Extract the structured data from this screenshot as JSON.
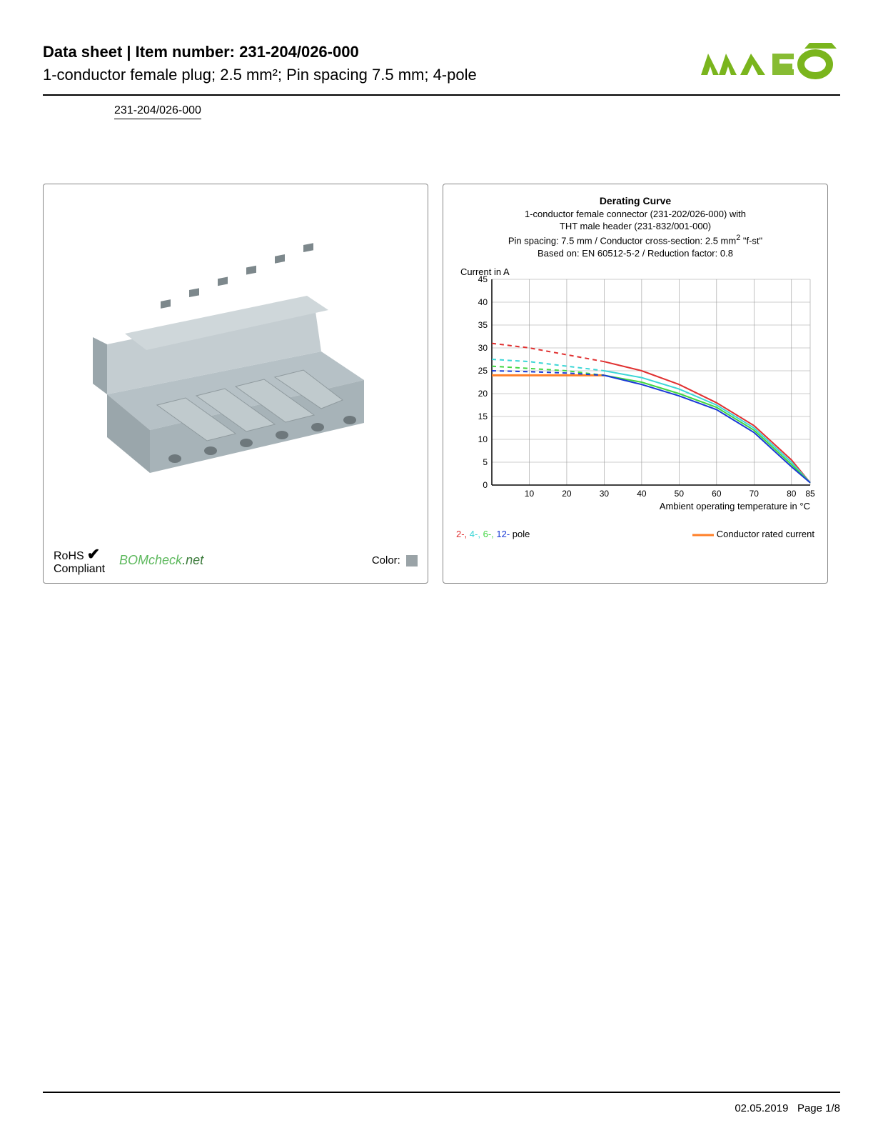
{
  "header": {
    "title_prefix": "Data sheet  |  Item number: ",
    "item_number": "231-204/026-000",
    "subtitle": "1-conductor female plug; 2.5 mm²; Pin spacing 7.5 mm; 4-pole",
    "item_link": "231-204/026-000",
    "logo_color": "#7ab51d"
  },
  "left_panel": {
    "product_color": "#b6c1c6",
    "rohs_line1": "RoHS",
    "rohs_line2": "Compliant",
    "checkmark": "✔",
    "bomcheck": "BOMcheck",
    "bomcheck_net": ".net",
    "color_label": "Color:",
    "color_swatch": "#9aa3a7"
  },
  "chart": {
    "title": "Derating Curve",
    "desc1": "1-conductor female connector (231-202/026-000) with",
    "desc2": "THT male header (231-832/001-000)",
    "desc3_a": "Pin spacing: 7.5 mm / Conductor cross-section: 2.5 mm",
    "desc3_sup": "2",
    "desc3_b": " \"f-st\"",
    "desc4": "Based on: EN 60512-5-2 / Reduction factor: 0.8",
    "y_label": "Current in A",
    "x_label": "Ambient operating temperature in °C",
    "y_ticks": [
      0,
      5,
      10,
      15,
      20,
      25,
      30,
      35,
      40,
      45
    ],
    "x_ticks": [
      10,
      20,
      30,
      40,
      50,
      60,
      70,
      80,
      85
    ],
    "xlim": [
      0,
      85
    ],
    "ylim": [
      0,
      45
    ],
    "grid_color": "#9a9a9a",
    "axis_color": "#000000",
    "background": "#ffffff",
    "series": {
      "p2": {
        "color": "#e03030",
        "dashed_until_x": 30,
        "points": [
          [
            0,
            31
          ],
          [
            10,
            30
          ],
          [
            20,
            28.5
          ],
          [
            30,
            27
          ],
          [
            40,
            25
          ],
          [
            50,
            22
          ],
          [
            60,
            18
          ],
          [
            70,
            13
          ],
          [
            80,
            5.5
          ],
          [
            85,
            0.5
          ]
        ]
      },
      "p4": {
        "color": "#3bd6d6",
        "dashed_until_x": 30,
        "points": [
          [
            0,
            27.5
          ],
          [
            10,
            27
          ],
          [
            20,
            26
          ],
          [
            30,
            25
          ],
          [
            40,
            23.5
          ],
          [
            50,
            21
          ],
          [
            60,
            17.5
          ],
          [
            70,
            12.5
          ],
          [
            80,
            5
          ],
          [
            85,
            0.5
          ]
        ]
      },
      "p6": {
        "color": "#41d641",
        "dashed_until_x": 30,
        "points": [
          [
            0,
            26
          ],
          [
            10,
            25.5
          ],
          [
            20,
            25
          ],
          [
            30,
            24
          ],
          [
            40,
            22.5
          ],
          [
            50,
            20
          ],
          [
            60,
            17
          ],
          [
            70,
            12
          ],
          [
            80,
            4.5
          ],
          [
            85,
            0.5
          ]
        ]
      },
      "p12": {
        "color": "#1a3ad6",
        "dashed_until_x": 30,
        "points": [
          [
            0,
            25
          ],
          [
            10,
            24.8
          ],
          [
            20,
            24.5
          ],
          [
            30,
            24
          ],
          [
            40,
            22
          ],
          [
            50,
            19.5
          ],
          [
            60,
            16.5
          ],
          [
            70,
            11.5
          ],
          [
            80,
            4
          ],
          [
            85,
            0.5
          ]
        ]
      },
      "rated": {
        "color": "#ff7f27",
        "points": [
          [
            0,
            24
          ],
          [
            30,
            24
          ]
        ]
      }
    },
    "legend_poles": [
      {
        "label": "2-",
        "color": "#e03030"
      },
      {
        "label": "4-",
        "color": "#3bd6d6"
      },
      {
        "label": "6-",
        "color": "#41d641"
      },
      {
        "label": "12-",
        "color": "#1a3ad6"
      }
    ],
    "legend_pole_suffix": " pole",
    "legend_rated": "Conductor rated current",
    "legend_rated_color": "#ff7f27"
  },
  "footer": {
    "date": "02.05.2019",
    "page": "Page 1/8"
  }
}
